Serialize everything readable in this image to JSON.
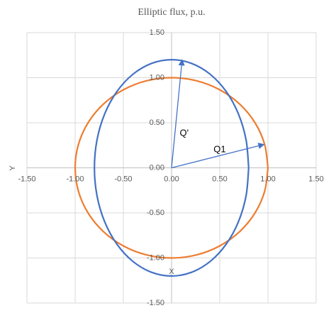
{
  "chart_data": {
    "type": "scatter",
    "title": "Elliptic flux, p.u.",
    "x_label": "X",
    "y_label": "Y",
    "xlim": [
      -1.5,
      1.5
    ],
    "ylim": [
      -1.5,
      1.5
    ],
    "xticks": [
      {
        "value": -1.5,
        "label": "-1.50"
      },
      {
        "value": -1,
        "label": "-1.00"
      },
      {
        "value": -0.5,
        "label": "-0.50"
      },
      {
        "value": 0,
        "label": "0.00"
      },
      {
        "value": 0.5,
        "label": "0.50"
      },
      {
        "value": 1,
        "label": "1.00"
      },
      {
        "value": 1.5,
        "label": "1.50"
      }
    ],
    "yticks": [
      {
        "value": 1.5,
        "label": "1.50"
      },
      {
        "value": 1,
        "label": "1.00"
      },
      {
        "value": 0.5,
        "label": "0.50"
      },
      {
        "value": 0,
        "label": "0.00"
      },
      {
        "value": -0.5,
        "label": "-0.50"
      },
      {
        "value": -1,
        "label": "-1.00"
      },
      {
        "value": -1.5,
        "label": "-1.50"
      }
    ],
    "grid": true,
    "series": [
      {
        "color": "#ed7d31",
        "x": [
          1,
          0.966,
          0.866,
          0.707,
          0.5,
          0.259,
          0,
          -0.259,
          -0.5,
          -0.707,
          -0.866,
          -0.966,
          -1,
          -0.966,
          -0.866,
          -0.707,
          -0.5,
          -0.259,
          0,
          0.259,
          0.5,
          0.707,
          0.866,
          0.966,
          1
        ],
        "values": [
          0,
          0.259,
          0.5,
          0.707,
          0.866,
          0.966,
          1,
          0.966,
          0.866,
          0.707,
          0.5,
          0.259,
          0,
          -0.259,
          -0.5,
          -0.707,
          -0.866,
          -0.966,
          -1,
          -0.966,
          -0.866,
          -0.707,
          -0.5,
          -0.259,
          0
        ]
      },
      {
        "color": "#4472c4",
        "x": [
          0.8,
          0.773,
          0.693,
          0.566,
          0.4,
          0.207,
          0,
          -0.207,
          -0.4,
          -0.566,
          -0.693,
          -0.773,
          -0.8,
          -0.773,
          -0.693,
          -0.566,
          -0.4,
          -0.207,
          0,
          0.207,
          0.4,
          0.566,
          0.693,
          0.773,
          0.8
        ],
        "values": [
          0,
          0.311,
          0.6,
          0.848,
          1.039,
          1.159,
          1.2,
          1.159,
          1.039,
          0.848,
          0.6,
          0.311,
          0,
          -0.311,
          -0.6,
          -0.848,
          -1.039,
          -1.159,
          -1.2,
          -1.159,
          -1.039,
          -0.848,
          -0.6,
          -0.311,
          0
        ]
      }
    ],
    "arrows": [
      {
        "label": "Q'",
        "color": "#4472c4",
        "x": [
          0,
          0.11
        ],
        "y": [
          0,
          1.2
        ]
      },
      {
        "label": "Q1",
        "color": "#4472c4",
        "x": [
          0,
          0.96
        ],
        "y": [
          0,
          0.26
        ]
      }
    ]
  }
}
